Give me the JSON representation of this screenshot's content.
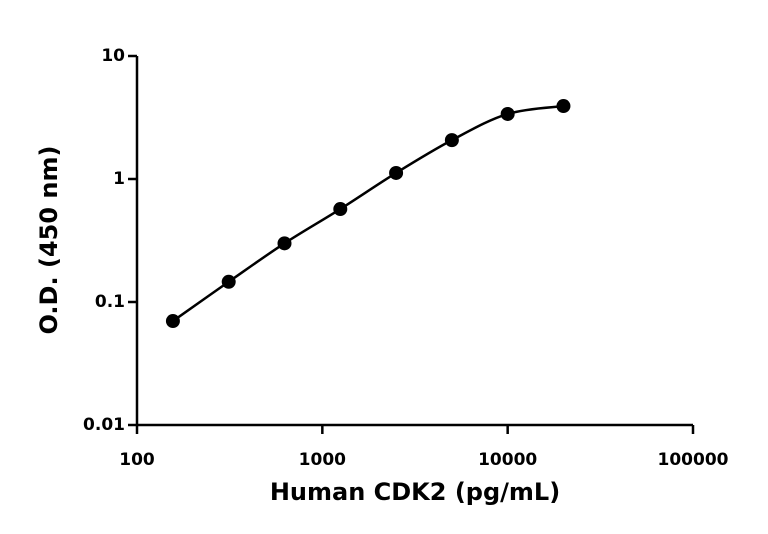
{
  "chart_data": {
    "type": "scatter",
    "xlabel": "Human CDK2 (pg/mL)",
    "ylabel": "O.D. (450 nm)",
    "x": [
      156.25,
      312.5,
      625,
      1250,
      2500,
      5000,
      10000,
      20000
    ],
    "series": [
      {
        "color": "#000000",
        "values": [
          0.07,
          0.146,
          0.3,
          0.57,
          1.12,
          2.07,
          3.38,
          3.92
        ]
      }
    ],
    "xscale": "log",
    "yscale": "log",
    "xlim": [
      100,
      100000
    ],
    "xticks": [
      100,
      1000,
      10000,
      100000
    ],
    "ylim": [
      0.01,
      10
    ],
    "yticks": [
      0.01,
      0.1,
      1,
      10
    ]
  }
}
